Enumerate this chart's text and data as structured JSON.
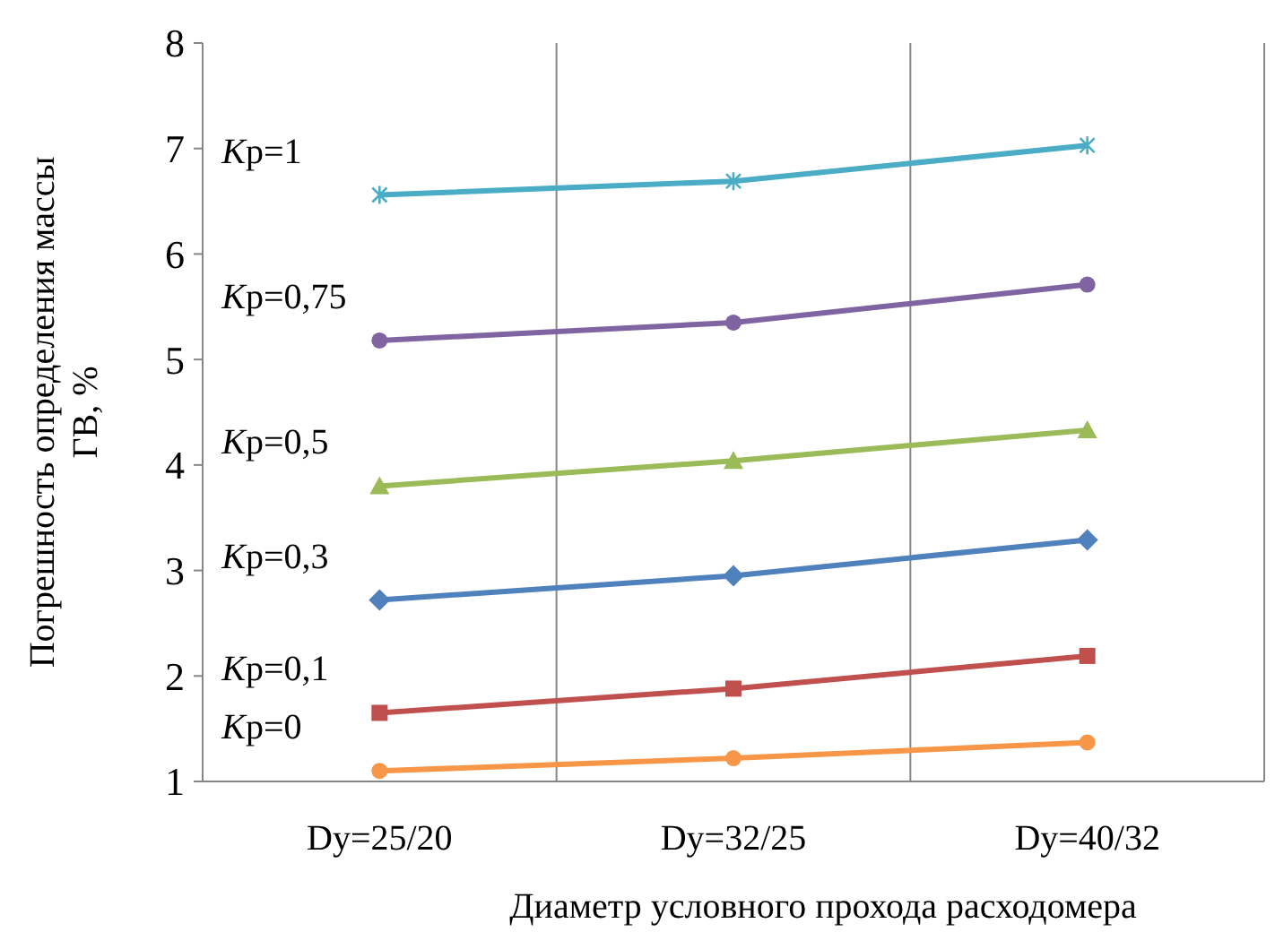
{
  "chart_data": {
    "type": "line",
    "xlabel": "Диаметр условного прохода расходомера",
    "ylabel": "Погрешность определения массы\nГВ, %",
    "categories": [
      "Dy=25/20",
      "Dy=32/25",
      "Dy=40/32"
    ],
    "ylim": [
      1,
      8
    ],
    "yticks": [
      1,
      2,
      3,
      4,
      5,
      6,
      7,
      8
    ],
    "grid": "x",
    "series": [
      {
        "name": "Kp=1",
        "color": "#4bacc6",
        "marker": "cross",
        "values": [
          6.56,
          6.69,
          7.03
        ]
      },
      {
        "name": "Kp=0,75",
        "color": "#8064a2",
        "marker": "circle",
        "values": [
          5.18,
          5.35,
          5.71
        ]
      },
      {
        "name": "Kp=0,5",
        "color": "#9bbb59",
        "marker": "triangle",
        "values": [
          3.8,
          4.04,
          4.33
        ]
      },
      {
        "name": "Kp=0,3",
        "color": "#4f81bd",
        "marker": "diamond",
        "values": [
          2.72,
          2.95,
          3.29
        ]
      },
      {
        "name": "Kp=0,1",
        "color": "#c0504d",
        "marker": "square",
        "values": [
          1.65,
          1.88,
          2.19
        ]
      },
      {
        "name": "Kp=0",
        "color": "#f79646",
        "marker": "circle",
        "values": [
          1.1,
          1.22,
          1.37
        ]
      }
    ]
  }
}
